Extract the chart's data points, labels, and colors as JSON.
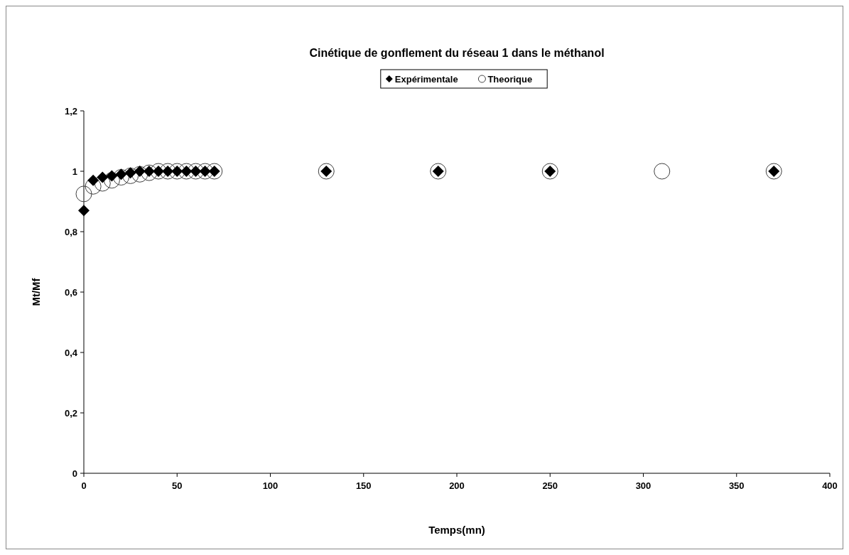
{
  "chart_data": {
    "type": "scatter",
    "title": "Cinétique de gonflement du réseau 1 dans le méthanol",
    "xlabel": "Temps(mn)",
    "ylabel": "Mt/Mf",
    "xlim": [
      0,
      400
    ],
    "xticks": [
      0,
      50,
      100,
      150,
      200,
      250,
      300,
      350,
      400
    ],
    "ylim": [
      0,
      1.2
    ],
    "yticks": [
      0,
      {
        "value": 0.2,
        "label": "0,2"
      },
      {
        "value": 0.4,
        "label": "0,4"
      },
      {
        "value": 0.6,
        "label": "0,6"
      },
      {
        "value": 0.8,
        "label": "0,8"
      },
      1,
      {
        "value": 1.2,
        "label": "1,2"
      }
    ],
    "grid": false,
    "legend": "top",
    "series": [
      {
        "name": "Theorique",
        "color": "#404040",
        "marker": "circle",
        "x": [
          0,
          5,
          10,
          15,
          20,
          25,
          30,
          35,
          40,
          45,
          50,
          55,
          60,
          65,
          70,
          130,
          190,
          250,
          310,
          370
        ],
        "values": [
          0.925,
          0.95,
          0.96,
          0.97,
          0.98,
          0.985,
          0.99,
          0.995,
          1,
          1,
          1,
          1,
          1,
          1,
          1,
          1,
          1,
          1,
          1,
          1
        ]
      },
      {
        "name": "Expérimentale",
        "color": "#000000",
        "marker": "diamond",
        "x": [
          0,
          5,
          10,
          15,
          20,
          25,
          30,
          35,
          40,
          45,
          50,
          55,
          60,
          65,
          70,
          130,
          190,
          250,
          370
        ],
        "values": [
          0.87,
          0.97,
          0.98,
          0.985,
          0.99,
          0.995,
          1,
          1,
          1,
          1,
          1,
          1,
          1,
          1,
          1,
          1,
          1,
          1,
          1
        ]
      }
    ]
  }
}
